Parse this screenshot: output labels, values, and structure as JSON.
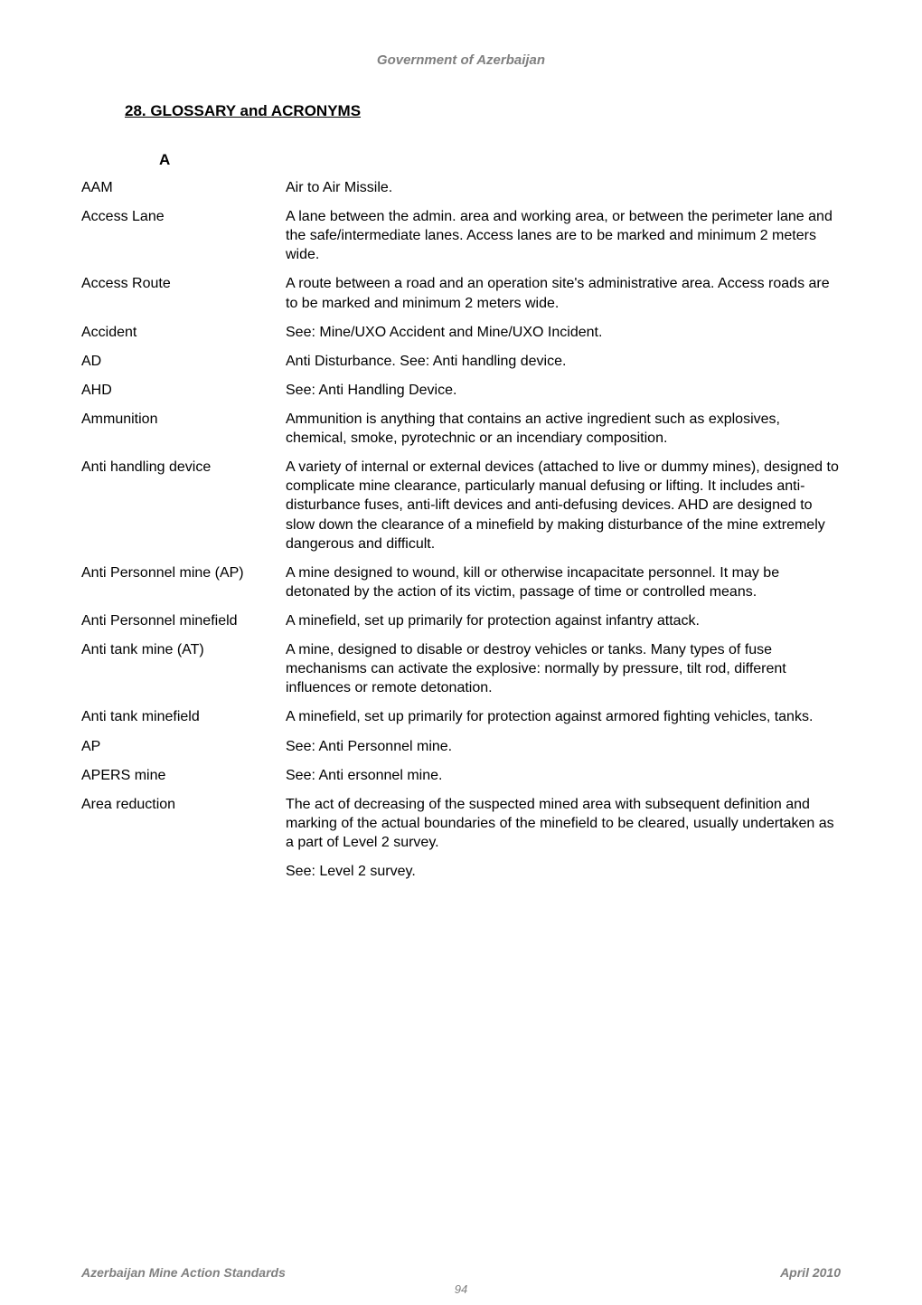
{
  "header": {
    "text": "Government of Azerbaijan"
  },
  "section": {
    "title": "28. GLOSSARY and ACRONYMS"
  },
  "letter": {
    "heading": "A"
  },
  "entries": [
    {
      "term": "AAM",
      "defs": [
        "Air to Air Missile."
      ]
    },
    {
      "term": "Access Lane",
      "defs": [
        "A lane between the admin. area and working area, or between the perimeter lane and the safe/intermediate lanes. Access lanes are to be marked and minimum 2 meters wide."
      ]
    },
    {
      "term": "Access Route",
      "defs": [
        "A route between a road and an operation site's administrative area. Access roads are to be marked and minimum 2 meters wide."
      ]
    },
    {
      "term": "Accident",
      "defs": [
        "See: Mine/UXO Accident and Mine/UXO Incident."
      ]
    },
    {
      "term": "AD",
      "defs": [
        "Anti Disturbance. See: Anti handling device."
      ]
    },
    {
      "term": "AHD",
      "defs": [
        "See: Anti Handling Device."
      ]
    },
    {
      "term": "Ammunition",
      "defs": [
        "Ammunition is anything that contains an active ingredient such as explosives, chemical, smoke, pyrotechnic or an incendiary composition."
      ]
    },
    {
      "term": "Anti handling device",
      "defs": [
        "A variety of internal or external devices (attached to live or dummy mines), designed to complicate mine clearance, particularly manual defusing or lifting. It includes anti-disturbance fuses, anti-lift devices and anti-defusing devices. AHD are designed to slow down the clearance of a minefield by making disturbance of the mine extremely dangerous and difficult."
      ]
    },
    {
      "term": "Anti Personnel mine (AP)",
      "defs": [
        "A mine designed to wound, kill or otherwise incapacitate personnel. It may be detonated by the action of its victim, passage of time or controlled means."
      ]
    },
    {
      "term": "Anti Personnel minefield",
      "defs": [
        "A minefield, set up primarily for protection against infantry attack."
      ]
    },
    {
      "term": "Anti tank mine (AT)",
      "defs": [
        "A mine, designed to disable or destroy vehicles or tanks. Many types of fuse mechanisms can activate the explosive: normally by pressure, tilt rod, different influences or remote detonation."
      ]
    },
    {
      "term": "Anti tank minefield",
      "defs": [
        "A minefield, set up primarily for protection against armored fighting vehicles, tanks."
      ]
    },
    {
      "term": "AP",
      "defs": [
        "See: Anti Personnel mine."
      ]
    },
    {
      "term": "APERS mine",
      "defs": [
        "See: Anti ersonnel mine."
      ]
    },
    {
      "term": "Area reduction",
      "defs": [
        "The act of decreasing of the suspected mined area with subsequent definition and marking of the actual boundaries of the minefield to be cleared, usually undertaken as a part of Level 2 survey.",
        "See: Level 2 survey."
      ]
    }
  ],
  "footer": {
    "left": "Azerbaijan Mine Action Standards",
    "right": "April 2010",
    "page": "94"
  }
}
